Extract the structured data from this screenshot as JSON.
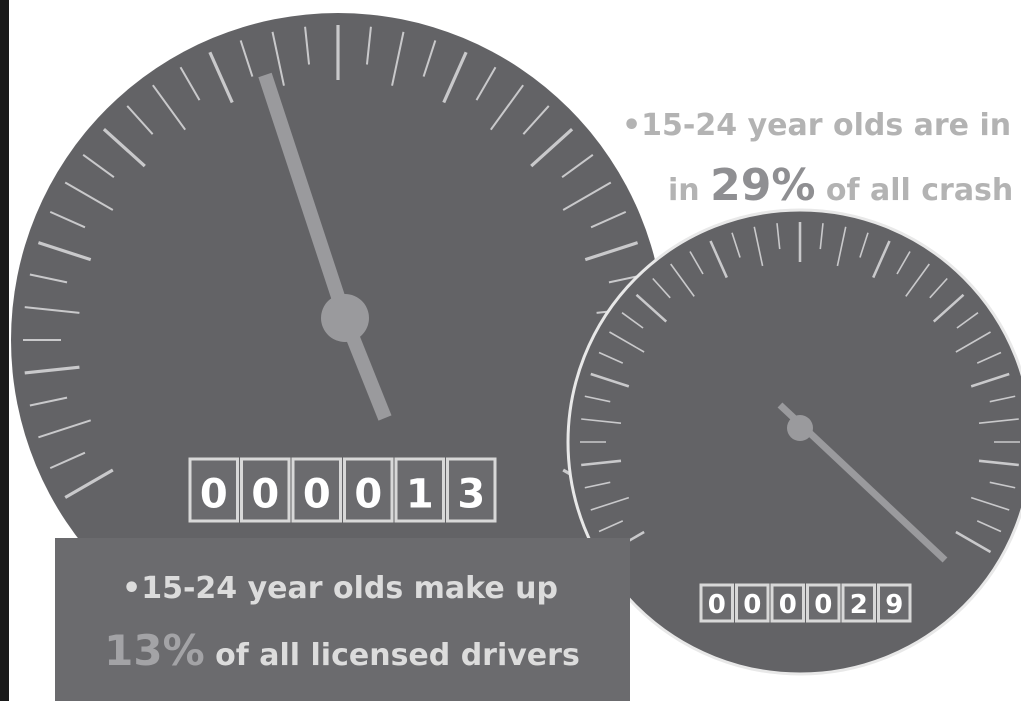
{
  "big_gauge": {
    "odometer": [
      "0",
      "0",
      "0",
      "0",
      "1",
      "3"
    ]
  },
  "small_gauge": {
    "odometer": [
      "0",
      "0",
      "0",
      "0",
      "2",
      "9"
    ]
  },
  "fact_top": {
    "line1": "•15-24 year olds are in",
    "line2_pre": "in",
    "line2_stat": "29%",
    "line2_post": "of all crash"
  },
  "fact_bottom": {
    "line1": "•15-24 year olds make up",
    "line2_stat": "13%",
    "line2_post": "of all licensed drivers"
  }
}
